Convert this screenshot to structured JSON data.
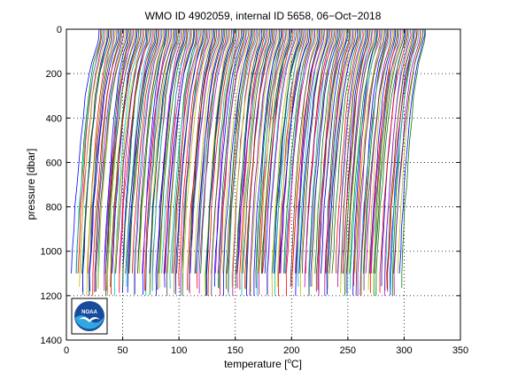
{
  "chart_data": {
    "type": "line",
    "title": "WMO ID 4902059, internal ID 5658, 06−Oct−2018",
    "xlabel": {
      "text": "temperature [",
      "sup": "o",
      "unit": "C]"
    },
    "ylabel": "pressure [dbar]",
    "xlim": [
      0,
      350
    ],
    "ylim": [
      1400,
      0
    ],
    "y_reversed": true,
    "x_ticks": [
      "0",
      "50",
      "100",
      "150",
      "200",
      "250",
      "300",
      "350"
    ],
    "y_ticks": [
      "0",
      "200",
      "400",
      "600",
      "800",
      "1000",
      "1200",
      "1400"
    ],
    "grid": "dotted",
    "profile_shape": {
      "pressure": [
        0,
        30,
        60,
        100,
        150,
        200,
        300,
        400,
        500,
        600,
        700,
        800,
        900,
        1000,
        1100
      ],
      "temperature_offset": [
        0,
        0,
        -1,
        -3.5,
        -6,
        -8,
        -11,
        -13,
        -15,
        -16.5,
        -18,
        -19.5,
        -20.5,
        -21.5,
        -22.5
      ]
    },
    "series": {
      "count": 240,
      "surface_temperature_range": [
        29,
        319
      ],
      "colors": [
        "#0000ff",
        "#008000",
        "#ff0000",
        "#00bfbf",
        "#bf00bf",
        "#bfbf00",
        "#404040"
      ]
    },
    "logo": {
      "name": "noaa-logo",
      "text": "NOAA",
      "colors": [
        "#1a4a9c",
        "#2fa8e0",
        "#ffffff"
      ]
    }
  }
}
